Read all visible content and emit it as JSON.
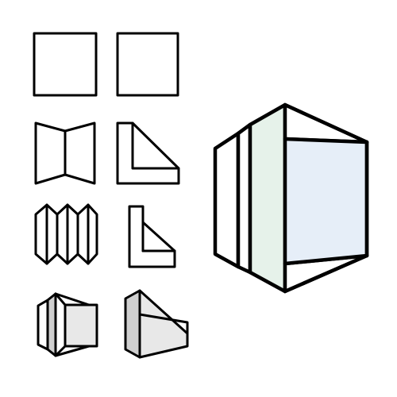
{
  "figure": {
    "description_kind": "isometric-folding-diagram",
    "colors": {
      "stroke": "#000000",
      "background": "#ffffff",
      "plain_fill": "#ffffff",
      "shade_gray": "#cfcfcf",
      "light_gray": "#e8e8e8",
      "panel_green": "#e6f2ea",
      "panel_blue": "#e6eef8"
    },
    "icons": [
      "square-panel-icon",
      "square-panel-icon",
      "bowtie-fold-icon",
      "triangle-fold-icon",
      "accordion-fold-icon",
      "step-fold-icon",
      "shaded-box-icon",
      "shaded-wedge-icon",
      "large-open-box-icon"
    ]
  }
}
